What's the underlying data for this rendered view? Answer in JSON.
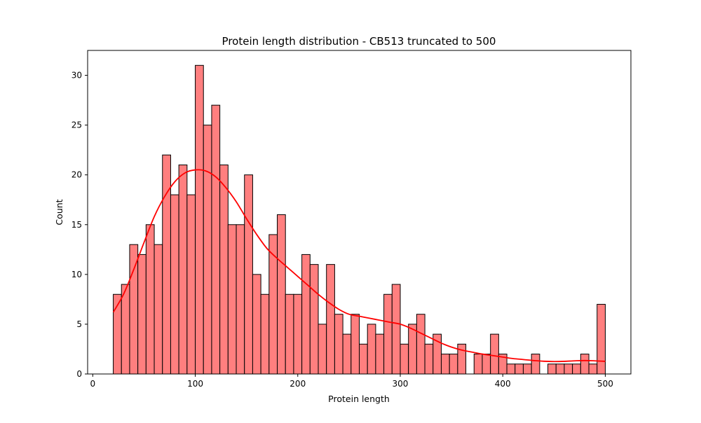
{
  "chart_data": {
    "type": "bar",
    "title": "Protein length distribution - CB513 truncated to 500",
    "xlabel": "Protein length",
    "ylabel": "Count",
    "xlim": [
      -5,
      525
    ],
    "ylim": [
      0,
      32.5
    ],
    "x_ticks": [
      0,
      100,
      200,
      300,
      400,
      500
    ],
    "y_ticks": [
      0,
      5,
      10,
      15,
      20,
      25,
      30
    ],
    "bin_start": 20,
    "bin_width": 8,
    "counts": [
      8,
      9,
      13,
      12,
      15,
      13,
      22,
      18,
      21,
      18,
      31,
      25,
      27,
      21,
      15,
      15,
      20,
      10,
      8,
      14,
      16,
      8,
      8,
      12,
      11,
      5,
      11,
      6,
      4,
      6,
      3,
      5,
      4,
      8,
      9,
      3,
      5,
      6,
      3,
      4,
      2,
      2,
      3,
      0,
      2,
      2,
      4,
      2,
      1,
      1,
      1,
      2,
      0,
      1,
      1,
      1,
      1,
      2,
      1,
      7
    ],
    "kde_curve": {
      "x": [
        20,
        30,
        40,
        50,
        60,
        70,
        80,
        90,
        100,
        110,
        120,
        130,
        140,
        150,
        160,
        170,
        180,
        190,
        200,
        210,
        220,
        230,
        240,
        250,
        260,
        270,
        280,
        290,
        300,
        310,
        320,
        330,
        340,
        350,
        360,
        370,
        380,
        390,
        400,
        410,
        420,
        430,
        440,
        450,
        460,
        470,
        480,
        490,
        500
      ],
      "y": [
        6.2,
        8.0,
        10.5,
        13.2,
        15.8,
        17.8,
        19.3,
        20.2,
        20.5,
        20.4,
        19.8,
        18.7,
        17.3,
        15.6,
        14.0,
        12.6,
        11.6,
        10.7,
        9.8,
        8.9,
        8.0,
        7.2,
        6.5,
        6.0,
        5.8,
        5.6,
        5.4,
        5.2,
        5.0,
        4.6,
        4.1,
        3.6,
        3.1,
        2.7,
        2.4,
        2.2,
        2.0,
        1.85,
        1.7,
        1.55,
        1.45,
        1.35,
        1.28,
        1.25,
        1.27,
        1.32,
        1.35,
        1.32,
        1.27
      ]
    },
    "bar_color": "#ff7f7f",
    "bar_edge_color": "#000000",
    "kde_color": "#ff0000",
    "grid": false,
    "legend": "none"
  }
}
